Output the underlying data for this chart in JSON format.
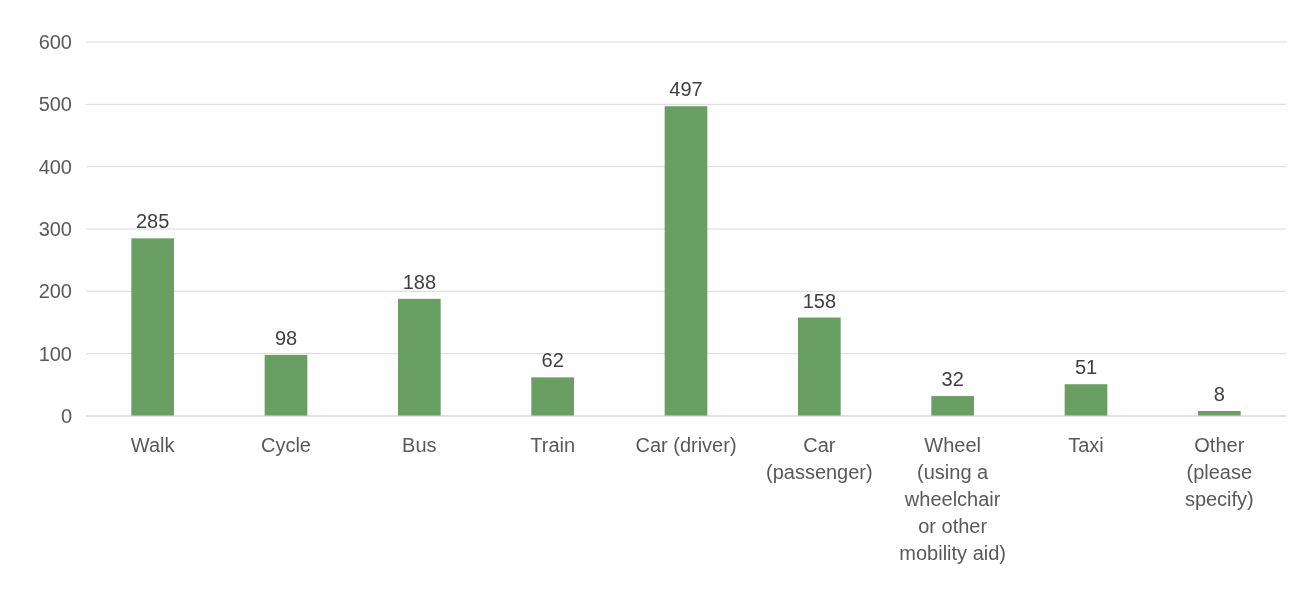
{
  "chart_data": {
    "type": "bar",
    "categories": [
      "Walk",
      "Cycle",
      "Bus",
      "Train",
      "Car (driver)",
      "Car (passenger)",
      "Wheel (using a wheelchair or other mobility aid)",
      "Taxi",
      "Other (please specify)"
    ],
    "values": [
      285,
      98,
      188,
      62,
      497,
      158,
      32,
      51,
      8
    ],
    "color": "#6a9f64",
    "ylim": [
      0,
      600
    ],
    "yticks": [
      0,
      100,
      200,
      300,
      400,
      500,
      600
    ],
    "grid": "y",
    "data_labels": true
  }
}
